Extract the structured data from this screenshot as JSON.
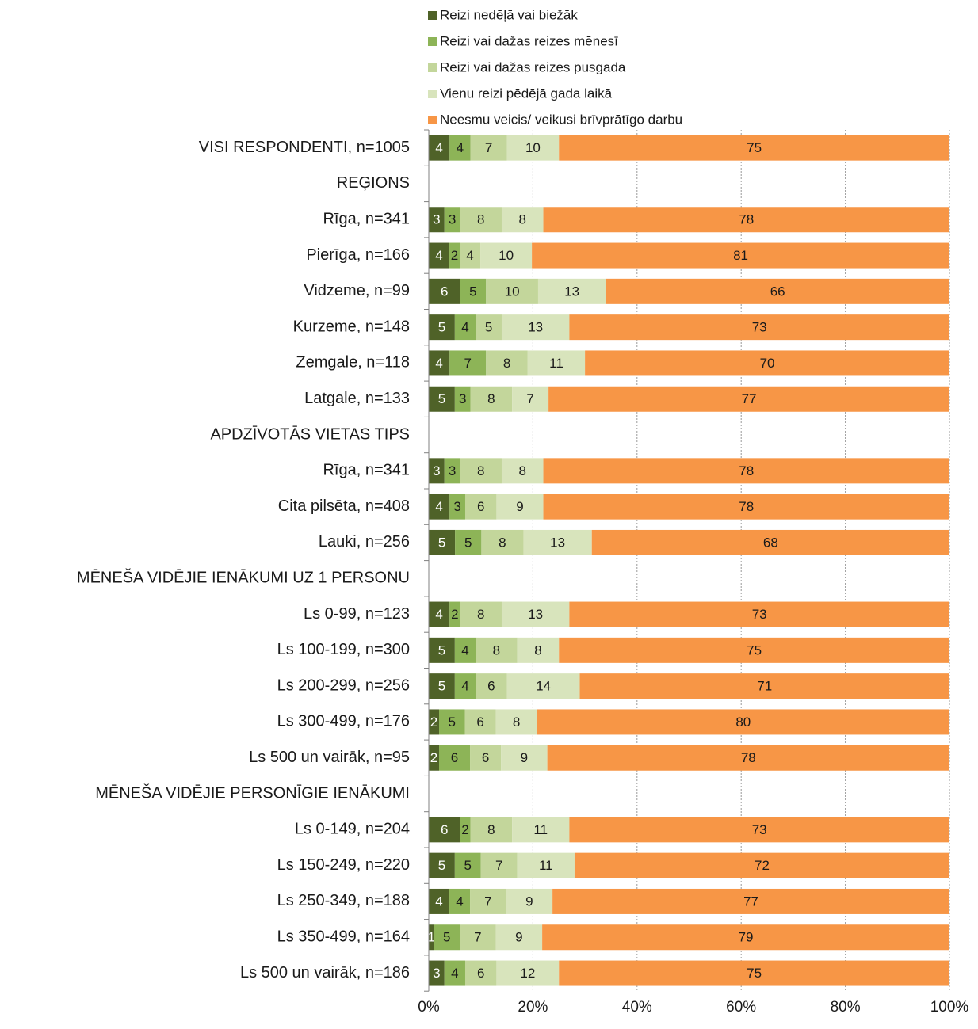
{
  "chart_data": {
    "type": "bar",
    "orientation": "horizontal",
    "stacked": true,
    "normalized": true,
    "title": "",
    "xlabel": "",
    "ylabel": "",
    "xlim": [
      0,
      100
    ],
    "x_ticks": [
      "0%",
      "20%",
      "40%",
      "60%",
      "80%",
      "100%"
    ],
    "grid": true,
    "legend_position": "top",
    "categories": [
      "VISI RESPONDENTI, n=1005",
      "REĢIONS",
      "Rīga, n=341",
      "Pierīga, n=166",
      "Vidzeme, n=99",
      "Kurzeme, n=148",
      "Zemgale, n=118",
      "Latgale, n=133",
      "APDZĪVOTĀS VIETAS TIPS",
      "Rīga, n=341",
      "Cita pilsēta, n=408",
      "Lauki, n=256",
      "MĒNEŠA VIDĒJIE IENĀKUMI UZ 1 PERSONU",
      "Ls 0-99, n=123",
      "Ls 100-199, n=300",
      "Ls 200-299, n=256",
      "Ls 300-499, n=176",
      "Ls 500 un vairāk, n=95",
      "MĒNEŠA VIDĒJIE PERSONĪGIE IENĀKUMI",
      "Ls 0-149, n=204",
      "Ls 150-249, n=220",
      "Ls 250-349, n=188",
      "Ls 350-499, n=164",
      "Ls 500 un vairāk, n=186"
    ],
    "series": [
      {
        "name": "Reizi nedēļā vai biežāk",
        "color": "#4f6228",
        "label_color": "#ffffff",
        "values": [
          4,
          null,
          3,
          4,
          6,
          5,
          4,
          5,
          null,
          3,
          4,
          5,
          null,
          4,
          5,
          5,
          2,
          2,
          null,
          6,
          5,
          4,
          1,
          3
        ]
      },
      {
        "name": "Reizi vai dažas reizes mēnesī",
        "color": "#8db457",
        "label_color": "#1a1a1a",
        "values": [
          4,
          null,
          3,
          2,
          5,
          4,
          7,
          3,
          null,
          3,
          3,
          5,
          null,
          2,
          4,
          4,
          5,
          6,
          null,
          2,
          5,
          4,
          5,
          4
        ]
      },
      {
        "name": "Reizi vai dažas reizes pusgadā",
        "color": "#c3d69b",
        "label_color": "#1a1a1a",
        "values": [
          7,
          null,
          8,
          4,
          10,
          5,
          8,
          8,
          null,
          8,
          6,
          8,
          null,
          8,
          8,
          6,
          6,
          6,
          null,
          8,
          7,
          7,
          7,
          6
        ]
      },
      {
        "name": "Vienu reizi pēdējā gada laikā",
        "color": "#d8e4bc",
        "label_color": "#1a1a1a",
        "values": [
          10,
          null,
          8,
          10,
          13,
          13,
          11,
          7,
          null,
          8,
          9,
          13,
          null,
          13,
          8,
          14,
          8,
          9,
          null,
          11,
          11,
          9,
          9,
          12
        ]
      },
      {
        "name": "Neesmu veicis/ veikusi brīvprātīgo darbu",
        "color": "#f79646",
        "label_color": "#1a1a1a",
        "values": [
          75,
          null,
          78,
          81,
          66,
          73,
          70,
          77,
          null,
          78,
          78,
          68,
          null,
          73,
          75,
          71,
          80,
          78,
          null,
          73,
          72,
          77,
          79,
          75
        ]
      }
    ]
  }
}
